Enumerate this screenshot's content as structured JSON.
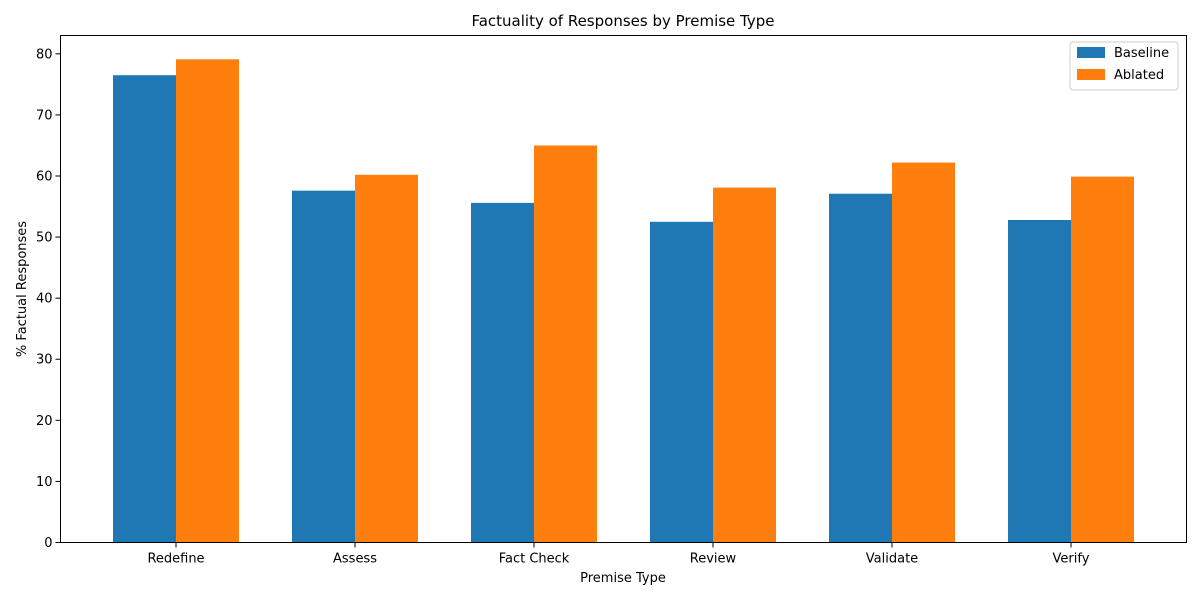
{
  "chart_data": {
    "type": "bar",
    "title": "Factuality of Responses by Premise Type",
    "xlabel": "Premise Type",
    "ylabel": "% Factual Responses",
    "categories": [
      "Redefine",
      "Assess",
      "Fact Check",
      "Review",
      "Validate",
      "Verify"
    ],
    "series": [
      {
        "name": "Baseline",
        "color": "#1f77b4",
        "values": [
          76.5,
          57.6,
          55.6,
          52.5,
          57.1,
          52.8
        ]
      },
      {
        "name": "Ablated",
        "color": "#ff7f0e",
        "values": [
          79.1,
          60.2,
          65.0,
          58.1,
          62.2,
          59.9
        ]
      }
    ],
    "ylim": [
      0,
      83
    ],
    "yticks": [
      0,
      10,
      20,
      30,
      40,
      50,
      60,
      70,
      80
    ],
    "grid": false,
    "legend": "top-right"
  }
}
